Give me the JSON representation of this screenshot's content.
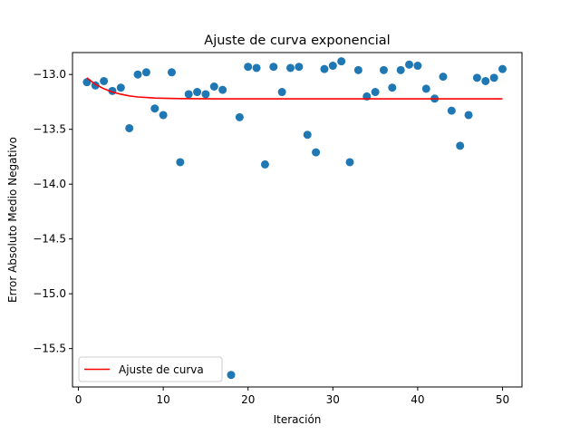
{
  "chart_data": {
    "type": "scatter",
    "title": "Ajuste de curva exponencial",
    "xlabel": "Iteración",
    "ylabel": "Error Absoluto Medio Negativo",
    "xlim": [
      -0.7,
      52.3
    ],
    "ylim": [
      -15.85,
      -12.8
    ],
    "xticks": [
      0,
      10,
      20,
      30,
      40,
      50
    ],
    "yticks": [
      -15.5,
      -15.0,
      -14.5,
      -14.0,
      -13.5,
      -13.0
    ],
    "ytick_labels": [
      "−15.5",
      "−15.0",
      "−14.5",
      "−14.0",
      "−13.5",
      "−13.0"
    ],
    "grid": false,
    "legend": {
      "placement": "lower-left",
      "entries": [
        "Ajuste de curva"
      ]
    },
    "colors": {
      "points": "#1f77b4",
      "fit": "#ff0000"
    },
    "series": [
      {
        "kind": "points",
        "x": [
          1,
          2,
          3,
          4,
          5,
          6,
          7,
          8,
          9,
          10,
          11,
          12,
          13,
          14,
          15,
          16,
          17,
          18,
          19,
          20,
          21,
          22,
          23,
          24,
          25,
          26,
          27,
          28,
          29,
          30,
          31,
          32,
          33,
          34,
          35,
          36,
          37,
          38,
          39,
          40,
          41,
          42,
          43,
          44,
          45,
          46,
          47,
          48,
          49,
          50
        ],
        "y": [
          -13.07,
          -13.1,
          -13.06,
          -13.15,
          -13.12,
          -13.49,
          -13.0,
          -12.98,
          -13.31,
          -13.37,
          -12.98,
          -13.8,
          -13.18,
          -13.16,
          -13.18,
          -13.11,
          -13.14,
          -15.74,
          -13.39,
          -12.93,
          -12.94,
          -13.82,
          -12.93,
          -13.16,
          -12.94,
          -12.93,
          -13.55,
          -13.71,
          -12.95,
          -12.92,
          -12.88,
          -13.8,
          -12.96,
          -13.2,
          -13.16,
          -12.96,
          -13.12,
          -12.96,
          -12.91,
          -12.92,
          -13.13,
          -13.22,
          -13.02,
          -13.33,
          -13.65,
          -13.37,
          -13.03,
          -13.06,
          -13.03,
          -12.95
        ]
      },
      {
        "kind": "fit",
        "name": "Ajuste de curva",
        "x": [
          1,
          2,
          3,
          4,
          5,
          6,
          7,
          8,
          9,
          10,
          12,
          14,
          16,
          20,
          25,
          30,
          35,
          40,
          45,
          50
        ],
        "y": [
          -13.03,
          -13.09,
          -13.13,
          -13.16,
          -13.18,
          -13.195,
          -13.205,
          -13.21,
          -13.215,
          -13.217,
          -13.22,
          -13.221,
          -13.222,
          -13.222,
          -13.222,
          -13.222,
          -13.222,
          -13.222,
          -13.222,
          -13.222
        ]
      }
    ]
  }
}
